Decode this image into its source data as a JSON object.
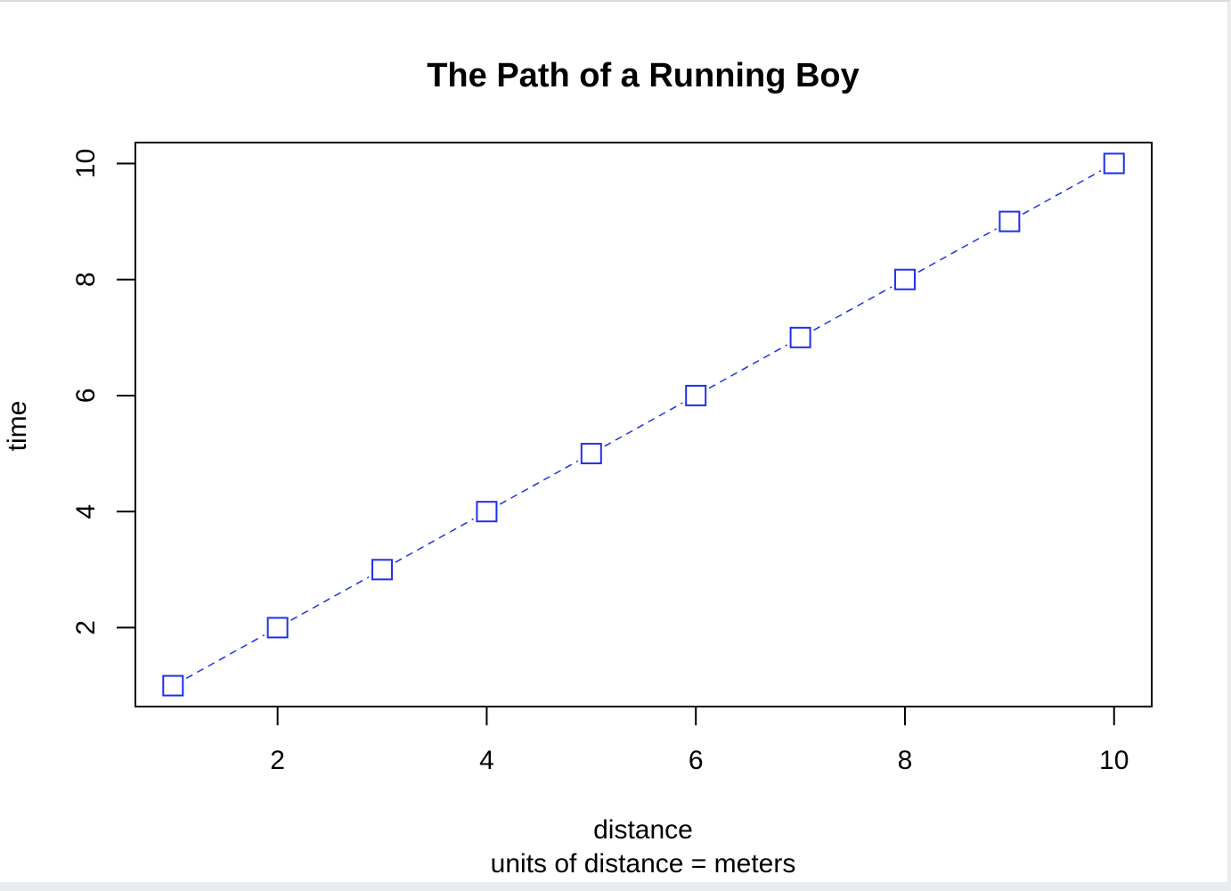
{
  "chart_data": {
    "type": "line",
    "title": "The Path of a Running Boy",
    "xlabel": "distance",
    "sub": "units of distance = meters",
    "ylabel": "time",
    "x": [
      1,
      2,
      3,
      4,
      5,
      6,
      7,
      8,
      9,
      10
    ],
    "series": [
      {
        "values": [
          1,
          2,
          3,
          4,
          5,
          6,
          7,
          8,
          9,
          10
        ]
      }
    ],
    "xlim": [
      0.64,
      10.36
    ],
    "ylim": [
      0.64,
      10.36
    ],
    "xticks": [
      "2",
      "4",
      "6",
      "8",
      "10"
    ],
    "yticks": [
      "2",
      "4",
      "6",
      "8",
      "10"
    ],
    "line_style": "dashed",
    "marker": "open-square",
    "color": "#1f2ff0",
    "grid": false,
    "legend": "none"
  }
}
